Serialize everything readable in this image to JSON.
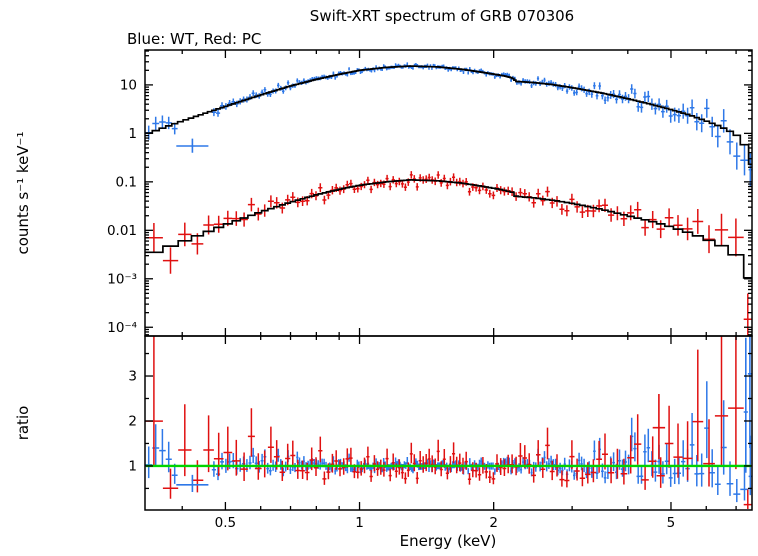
{
  "legend": "Blue: WT, Red: PC",
  "colors": {
    "wt": "#2e78e8",
    "pc": "#e01010",
    "model": "#000000",
    "ratio_line": "#00d400",
    "frame": "#000000"
  },
  "chart_data": {
    "type": "scatter",
    "title": "Swift-XRT spectrum of GRB 070306",
    "xlabel": "Energy (keV)",
    "xscale": "log",
    "xlim": [
      0.33,
      7.6
    ],
    "xticks": [
      0.5,
      1,
      2,
      5
    ],
    "xtick_labels": [
      "0.5",
      "1",
      "2",
      "5"
    ],
    "x_minor_ticks": [
      0.4,
      0.6,
      0.7,
      0.8,
      0.9,
      3,
      4,
      6,
      7
    ],
    "legend_note": "Blue: WT, Red: PC",
    "panels": [
      {
        "name": "spectrum",
        "ylabel": "counts s⁻¹ keV⁻¹",
        "yscale": "log",
        "ylim": [
          6.6e-05,
          52.5
        ],
        "yticks": [
          10,
          1,
          0.1,
          0.01,
          0.001,
          0.0001
        ],
        "ytick_labels": [
          "10",
          "1",
          "0.1",
          "0.01",
          "10⁻³",
          "10⁻⁴"
        ],
        "description": "Count-rate spectra: data points with error bars scatter about the stepped black best-fit model histograms.",
        "series": [
          {
            "name": "WT mode (blue)",
            "key": "wt",
            "color": "wt",
            "model": [
              [
                0.33,
                0.95
              ],
              [
                0.4,
                1.8
              ],
              [
                0.5,
                3.6
              ],
              [
                0.6,
                6.2
              ],
              [
                0.7,
                9.5
              ],
              [
                0.8,
                13.0
              ],
              [
                0.9,
                16.5
              ],
              [
                1.0,
                20.0
              ],
              [
                1.15,
                23.0
              ],
              [
                1.3,
                24.5
              ],
              [
                1.5,
                23.5
              ],
              [
                1.7,
                21.0
              ],
              [
                1.9,
                18.0
              ],
              [
                2.1,
                15.5
              ],
              [
                2.2,
                14.0
              ],
              [
                2.25,
                11.8
              ],
              [
                2.45,
                11.2
              ],
              [
                2.7,
                10.2
              ],
              [
                3.0,
                8.8
              ],
              [
                3.5,
                6.8
              ],
              [
                4.0,
                5.2
              ],
              [
                4.5,
                4.0
              ],
              [
                5.0,
                3.1
              ],
              [
                5.5,
                2.4
              ],
              [
                6.0,
                1.8
              ],
              [
                6.5,
                1.35
              ],
              [
                7.0,
                0.95
              ],
              [
                7.3,
                0.6
              ],
              [
                7.5,
                0.35
              ],
              [
                7.6,
                0.1
              ]
            ],
            "scatter_sigma_dex": [
              [
                -0.48,
                0.13
              ],
              [
                -0.3,
                0.06
              ],
              [
                -0.15,
                0.04
              ],
              [
                0,
                0.027
              ],
              [
                0.3,
                0.03
              ],
              [
                0.48,
                0.05
              ],
              [
                0.6,
                0.08
              ],
              [
                0.7,
                0.12
              ],
              [
                0.78,
                0.17
              ],
              [
                0.845,
                0.24
              ],
              [
                0.88,
                0.3
              ]
            ]
          },
          {
            "name": "PC mode (red)",
            "key": "pc",
            "color": "pc",
            "model": [
              [
                0.33,
                0.003
              ],
              [
                0.4,
                0.0058
              ],
              [
                0.5,
                0.013
              ],
              [
                0.6,
                0.024
              ],
              [
                0.7,
                0.038
              ],
              [
                0.8,
                0.054
              ],
              [
                0.9,
                0.07
              ],
              [
                1.0,
                0.085
              ],
              [
                1.15,
                0.1
              ],
              [
                1.3,
                0.11
              ],
              [
                1.5,
                0.105
              ],
              [
                1.7,
                0.094
              ],
              [
                1.9,
                0.08
              ],
              [
                2.1,
                0.068
              ],
              [
                2.2,
                0.061
              ],
              [
                2.25,
                0.05
              ],
              [
                2.45,
                0.047
              ],
              [
                2.7,
                0.042
              ],
              [
                3.0,
                0.036
              ],
              [
                3.5,
                0.027
              ],
              [
                4.0,
                0.02
              ],
              [
                4.5,
                0.0155
              ],
              [
                5.0,
                0.0118
              ],
              [
                5.5,
                0.0089
              ],
              [
                6.0,
                0.0066
              ],
              [
                6.5,
                0.0048
              ],
              [
                7.0,
                0.0031
              ],
              [
                7.3,
                0.0018
              ],
              [
                7.45,
                0.001
              ],
              [
                7.6,
                0.0004
              ]
            ],
            "scatter_sigma_dex": [
              [
                -0.48,
                0.28
              ],
              [
                -0.3,
                0.14
              ],
              [
                -0.15,
                0.09
              ],
              [
                0,
                0.065
              ],
              [
                0.3,
                0.07
              ],
              [
                0.477,
                0.1
              ],
              [
                0.6,
                0.13
              ],
              [
                0.7,
                0.17
              ],
              [
                0.778,
                0.24
              ],
              [
                0.845,
                0.34
              ],
              [
                0.88,
                0.5
              ]
            ]
          }
        ]
      },
      {
        "name": "ratio",
        "ylabel": "ratio",
        "yscale": "linear",
        "ylim": [
          0.02,
          3.89
        ],
        "yticks": [
          1,
          2,
          3
        ],
        "ytick_labels": [
          "1",
          "2",
          "3"
        ],
        "minor_yticks": [
          0.5,
          1.5,
          2.5,
          3.5
        ],
        "reference_line": 1,
        "description": "Data/model ratio for both WT (blue) and PC (red); green line marks ratio = 1. Scatter grows toward the ends of the bandpass."
      }
    ]
  },
  "generation": {
    "seed": 20070306,
    "errorbar_halfwidth_sigma": 1.15,
    "series": [
      {
        "key": "wt",
        "binK": 0.016,
        "binMin": 0.003,
        "binMax": 0.055,
        "gaps": [
          [
            0.385,
            0.468
          ]
        ]
      },
      {
        "key": "pc",
        "binK": 0.0022,
        "binMin": 0.004,
        "binMax": 0.07,
        "gaps": []
      }
    ],
    "extra_points": [
      {
        "series": "wt",
        "panel": "spec",
        "e0": 0.388,
        "e1": 0.458,
        "value": 0.55,
        "lo": 0.4,
        "hi": 0.78
      },
      {
        "series": "wt",
        "panel": "ratio",
        "e0": 0.388,
        "e1": 0.458,
        "value": 0.58,
        "lo": 0.42,
        "hi": 0.8
      },
      {
        "series": "wt",
        "panel": "ratio",
        "e0": 7.28,
        "e1": 7.44,
        "value": 2.2,
        "lo": 0.85,
        "hi": 3.85
      },
      {
        "series": "wt",
        "panel": "ratio",
        "e0": 7.44,
        "e1": 7.6,
        "value": 3.05,
        "lo": 1.4,
        "hi": 3.88
      },
      {
        "series": "pc",
        "panel": "ratio",
        "e0": 4.55,
        "e1": 4.85,
        "value": 1.85,
        "lo": 1.15,
        "hi": 2.6
      }
    ]
  }
}
